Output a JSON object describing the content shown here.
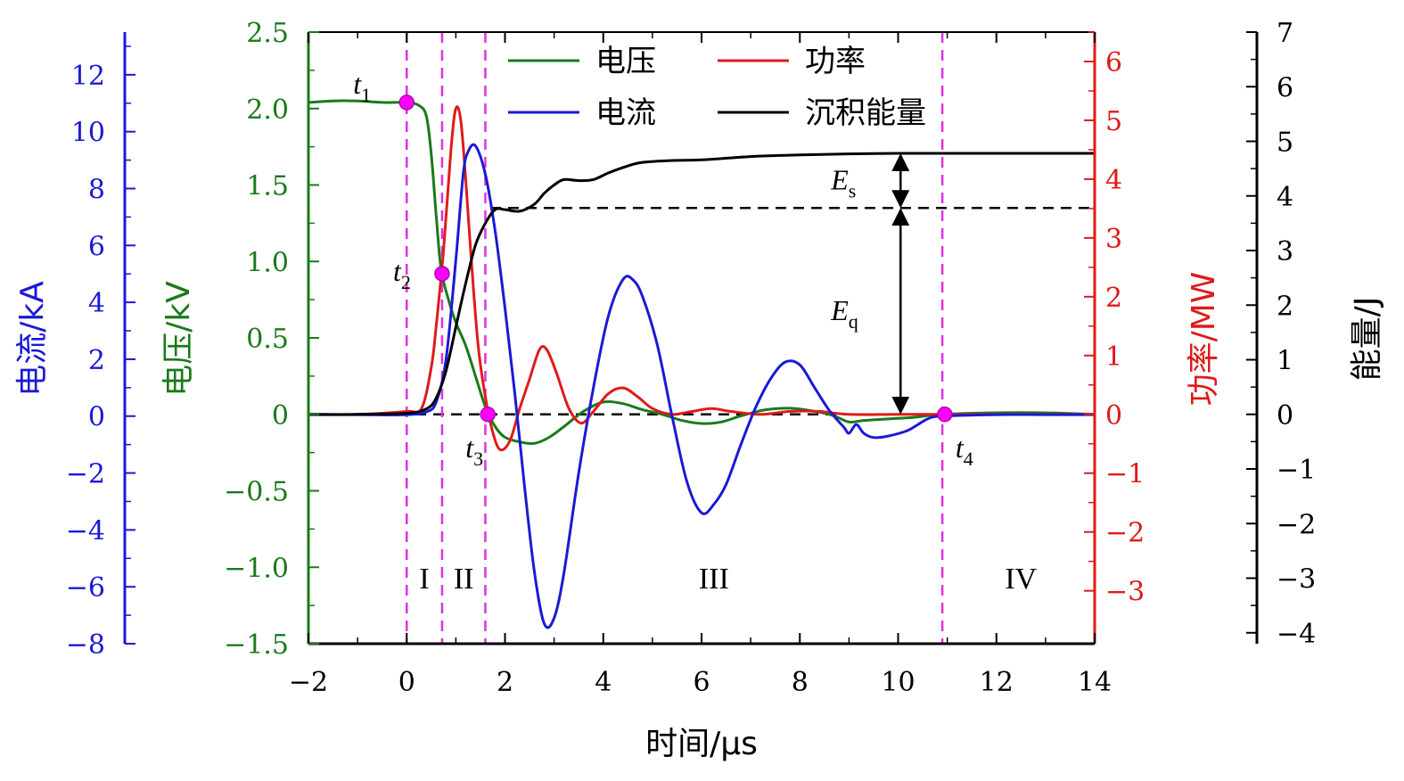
{
  "chart_data": {
    "type": "line",
    "x_axis": {
      "label": "时间/μs",
      "range": [
        -2,
        14
      ],
      "ticks": [
        -2,
        0,
        2,
        4,
        6,
        8,
        10,
        12,
        14
      ],
      "tick_labels": [
        "−2",
        "0",
        "2",
        "4",
        "6",
        "8",
        "10",
        "12",
        "14"
      ]
    },
    "axes": {
      "current": {
        "label": "电流/kA",
        "color": "#1a1ad6",
        "range": [
          -8,
          13.5
        ],
        "ticks": [
          -8,
          -6,
          -4,
          -2,
          0,
          2,
          4,
          6,
          8,
          10,
          12
        ],
        "tick_labels": [
          "−8",
          "−6",
          "−4",
          "−2",
          "0",
          "2",
          "4",
          "6",
          "8",
          "10",
          "12"
        ]
      },
      "voltage": {
        "label": "电压/kV",
        "color": "#1a7a1a",
        "range": [
          -1.5,
          2.5
        ],
        "ticks": [
          -1.5,
          -1.0,
          -0.5,
          0,
          0.5,
          1.0,
          1.5,
          2.0,
          2.5
        ],
        "tick_labels": [
          "−1.5",
          "−1.0",
          "−0.5",
          "0",
          "0.5",
          "1.0",
          "1.5",
          "2.0",
          "2.5"
        ]
      },
      "power": {
        "label": "功率/MW",
        "color": "#e01a1a",
        "range": [
          -3.9,
          6.5
        ],
        "ticks": [
          -3,
          -2,
          -1,
          0,
          1,
          2,
          3,
          4,
          5,
          6
        ],
        "tick_labels": [
          "−3",
          "−2",
          "−1",
          "0",
          "1",
          "2",
          "3",
          "4",
          "5",
          "6"
        ]
      },
      "energy": {
        "label": "能量/J",
        "color": "#000000",
        "range": [
          -4.2,
          7
        ],
        "ticks": [
          -4,
          -3,
          -2,
          -1,
          0,
          1,
          2,
          3,
          4,
          5,
          6,
          7
        ],
        "tick_labels": [
          "−4",
          "−3",
          "−2",
          "−1",
          "0",
          "1",
          "2",
          "3",
          "4",
          "5",
          "6",
          "7"
        ]
      }
    },
    "series": [
      {
        "name": "电压",
        "axis": "voltage",
        "color": "#1a7a1a",
        "points": [
          [
            -2,
            2.04
          ],
          [
            -1.5,
            2.05
          ],
          [
            -1,
            2.05
          ],
          [
            -0.5,
            2.04
          ],
          [
            0,
            2.04
          ],
          [
            0.25,
            2.02
          ],
          [
            0.4,
            1.95
          ],
          [
            0.5,
            1.7
          ],
          [
            0.6,
            1.3
          ],
          [
            0.7,
            0.95
          ],
          [
            0.85,
            0.75
          ],
          [
            1.0,
            0.6
          ],
          [
            1.2,
            0.45
          ],
          [
            1.4,
            0.25
          ],
          [
            1.6,
            0.05
          ],
          [
            1.8,
            -0.08
          ],
          [
            2.0,
            -0.15
          ],
          [
            2.3,
            -0.18
          ],
          [
            2.6,
            -0.19
          ],
          [
            2.9,
            -0.15
          ],
          [
            3.2,
            -0.08
          ],
          [
            3.6,
            0.02
          ],
          [
            4.0,
            0.08
          ],
          [
            4.4,
            0.07
          ],
          [
            4.8,
            0.03
          ],
          [
            5.2,
            0.0
          ],
          [
            5.6,
            -0.04
          ],
          [
            6.0,
            -0.06
          ],
          [
            6.4,
            -0.05
          ],
          [
            6.8,
            -0.01
          ],
          [
            7.3,
            0.03
          ],
          [
            7.8,
            0.04
          ],
          [
            8.3,
            0.02
          ],
          [
            8.7,
            -0.01
          ],
          [
            9.0,
            -0.05
          ],
          [
            9.3,
            -0.04
          ],
          [
            9.8,
            -0.03
          ],
          [
            10.3,
            -0.02
          ],
          [
            10.9,
            0.0
          ],
          [
            12,
            0.01
          ],
          [
            13,
            0.01
          ],
          [
            14,
            0.0
          ]
        ]
      },
      {
        "name": "电流",
        "axis": "current",
        "color": "#1a1ad6",
        "points": [
          [
            -2,
            0.05
          ],
          [
            -1,
            0.05
          ],
          [
            0,
            0.05
          ],
          [
            0.4,
            0.15
          ],
          [
            0.6,
            0.5
          ],
          [
            0.8,
            2.0
          ],
          [
            1.0,
            5.5
          ],
          [
            1.15,
            8.5
          ],
          [
            1.25,
            9.3
          ],
          [
            1.4,
            9.5
          ],
          [
            1.6,
            8.5
          ],
          [
            1.8,
            6.5
          ],
          [
            2.0,
            3.8
          ],
          [
            2.2,
            0.8
          ],
          [
            2.4,
            -2.5
          ],
          [
            2.6,
            -5.5
          ],
          [
            2.8,
            -7.3
          ],
          [
            3.0,
            -7.1
          ],
          [
            3.2,
            -5.5
          ],
          [
            3.5,
            -2.0
          ],
          [
            3.8,
            1.0
          ],
          [
            4.1,
            3.5
          ],
          [
            4.4,
            4.8
          ],
          [
            4.6,
            4.8
          ],
          [
            4.8,
            4.2
          ],
          [
            5.1,
            2.5
          ],
          [
            5.4,
            0.0
          ],
          [
            5.7,
            -2.3
          ],
          [
            6.0,
            -3.4
          ],
          [
            6.25,
            -3.1
          ],
          [
            6.5,
            -2.4
          ],
          [
            6.8,
            -1.0
          ],
          [
            7.1,
            0.3
          ],
          [
            7.4,
            1.3
          ],
          [
            7.7,
            1.9
          ],
          [
            8.0,
            1.8
          ],
          [
            8.3,
            1.0
          ],
          [
            8.6,
            0.2
          ],
          [
            8.9,
            -0.4
          ],
          [
            9.0,
            -0.6
          ],
          [
            9.15,
            -0.3
          ],
          [
            9.3,
            -0.6
          ],
          [
            9.5,
            -0.75
          ],
          [
            9.8,
            -0.7
          ],
          [
            10.2,
            -0.5
          ],
          [
            10.6,
            -0.1
          ],
          [
            10.9,
            0.0
          ],
          [
            12,
            0.05
          ],
          [
            13,
            0.05
          ],
          [
            14,
            0.05
          ]
        ]
      },
      {
        "name": "功率",
        "axis": "power",
        "color": "#e01a1a",
        "points": [
          [
            -2,
            0.0
          ],
          [
            -1,
            0.0
          ],
          [
            0,
            0.05
          ],
          [
            0.3,
            0.1
          ],
          [
            0.5,
            0.8
          ],
          [
            0.6,
            1.5
          ],
          [
            0.75,
            2.8
          ],
          [
            0.9,
            4.5
          ],
          [
            1.0,
            5.2
          ],
          [
            1.1,
            5.0
          ],
          [
            1.2,
            4.0
          ],
          [
            1.3,
            2.8
          ],
          [
            1.45,
            1.2
          ],
          [
            1.6,
            0.3
          ],
          [
            1.75,
            -0.3
          ],
          [
            1.9,
            -0.6
          ],
          [
            2.1,
            -0.45
          ],
          [
            2.3,
            0.1
          ],
          [
            2.5,
            0.6
          ],
          [
            2.7,
            1.1
          ],
          [
            2.85,
            1.1
          ],
          [
            3.05,
            0.7
          ],
          [
            3.3,
            0.1
          ],
          [
            3.55,
            -0.15
          ],
          [
            3.8,
            0.05
          ],
          [
            4.1,
            0.35
          ],
          [
            4.4,
            0.45
          ],
          [
            4.7,
            0.3
          ],
          [
            5.0,
            0.1
          ],
          [
            5.4,
            0.0
          ],
          [
            5.8,
            0.05
          ],
          [
            6.2,
            0.1
          ],
          [
            6.6,
            0.05
          ],
          [
            7.2,
            0.0
          ],
          [
            7.8,
            0.05
          ],
          [
            8.4,
            0.05
          ],
          [
            9.0,
            0.0
          ],
          [
            10,
            0.0
          ],
          [
            11,
            0.0
          ],
          [
            12,
            0.0
          ],
          [
            13,
            0.0
          ],
          [
            14,
            0.0
          ]
        ]
      },
      {
        "name": "沉积能量",
        "axis": "energy",
        "color": "#000000",
        "points": [
          [
            -2,
            0.0
          ],
          [
            -1,
            0.0
          ],
          [
            0,
            0.02
          ],
          [
            0.4,
            0.1
          ],
          [
            0.6,
            0.3
          ],
          [
            0.8,
            0.8
          ],
          [
            1.0,
            1.6
          ],
          [
            1.2,
            2.4
          ],
          [
            1.4,
            3.1
          ],
          [
            1.6,
            3.5
          ],
          [
            1.8,
            3.75
          ],
          [
            2.0,
            3.75
          ],
          [
            2.3,
            3.72
          ],
          [
            2.6,
            3.85
          ],
          [
            2.8,
            4.05
          ],
          [
            3.0,
            4.2
          ],
          [
            3.2,
            4.3
          ],
          [
            3.5,
            4.28
          ],
          [
            3.8,
            4.3
          ],
          [
            4.1,
            4.42
          ],
          [
            4.4,
            4.52
          ],
          [
            4.7,
            4.6
          ],
          [
            5.0,
            4.63
          ],
          [
            5.5,
            4.65
          ],
          [
            6.0,
            4.66
          ],
          [
            7.0,
            4.72
          ],
          [
            8.0,
            4.75
          ],
          [
            9.0,
            4.77
          ],
          [
            10.0,
            4.78
          ],
          [
            11.0,
            4.78
          ],
          [
            12.0,
            4.78
          ],
          [
            13.0,
            4.78
          ],
          [
            14.0,
            4.78
          ]
        ]
      }
    ],
    "legend": {
      "placement": "top-center",
      "items": [
        "电压",
        "功率",
        "电流",
        "沉积能量"
      ]
    },
    "vertical_markers": [
      0,
      0.72,
      1.6,
      10.9
    ],
    "reference_lines": {
      "zero_energy": 0,
      "quench_energy": 3.78
    },
    "markers": [
      {
        "label_base": "t",
        "label_sub": "1",
        "x": 0,
        "voltage": 2.04
      },
      {
        "label_base": "t",
        "label_sub": "2",
        "x": 0.72,
        "voltage": 0.92
      },
      {
        "label_base": "t",
        "label_sub": "3",
        "x": 1.65,
        "voltage": 0.0
      },
      {
        "label_base": "t",
        "label_sub": "4",
        "x": 10.95,
        "voltage": 0.0
      }
    ],
    "annotations": [
      {
        "label_base": "E",
        "label_sub": "s",
        "x": 10.05,
        "energy_from": 3.78,
        "energy_to": 4.78
      },
      {
        "label_base": "E",
        "label_sub": "q",
        "x": 10.05,
        "energy_from": 0.0,
        "energy_to": 3.78
      }
    ],
    "regions": [
      {
        "label": "I",
        "x": 0.36
      },
      {
        "label": "II",
        "x": 1.16
      },
      {
        "label": "III",
        "x": 6.25
      },
      {
        "label": "IV",
        "x": 12.5
      }
    ]
  }
}
